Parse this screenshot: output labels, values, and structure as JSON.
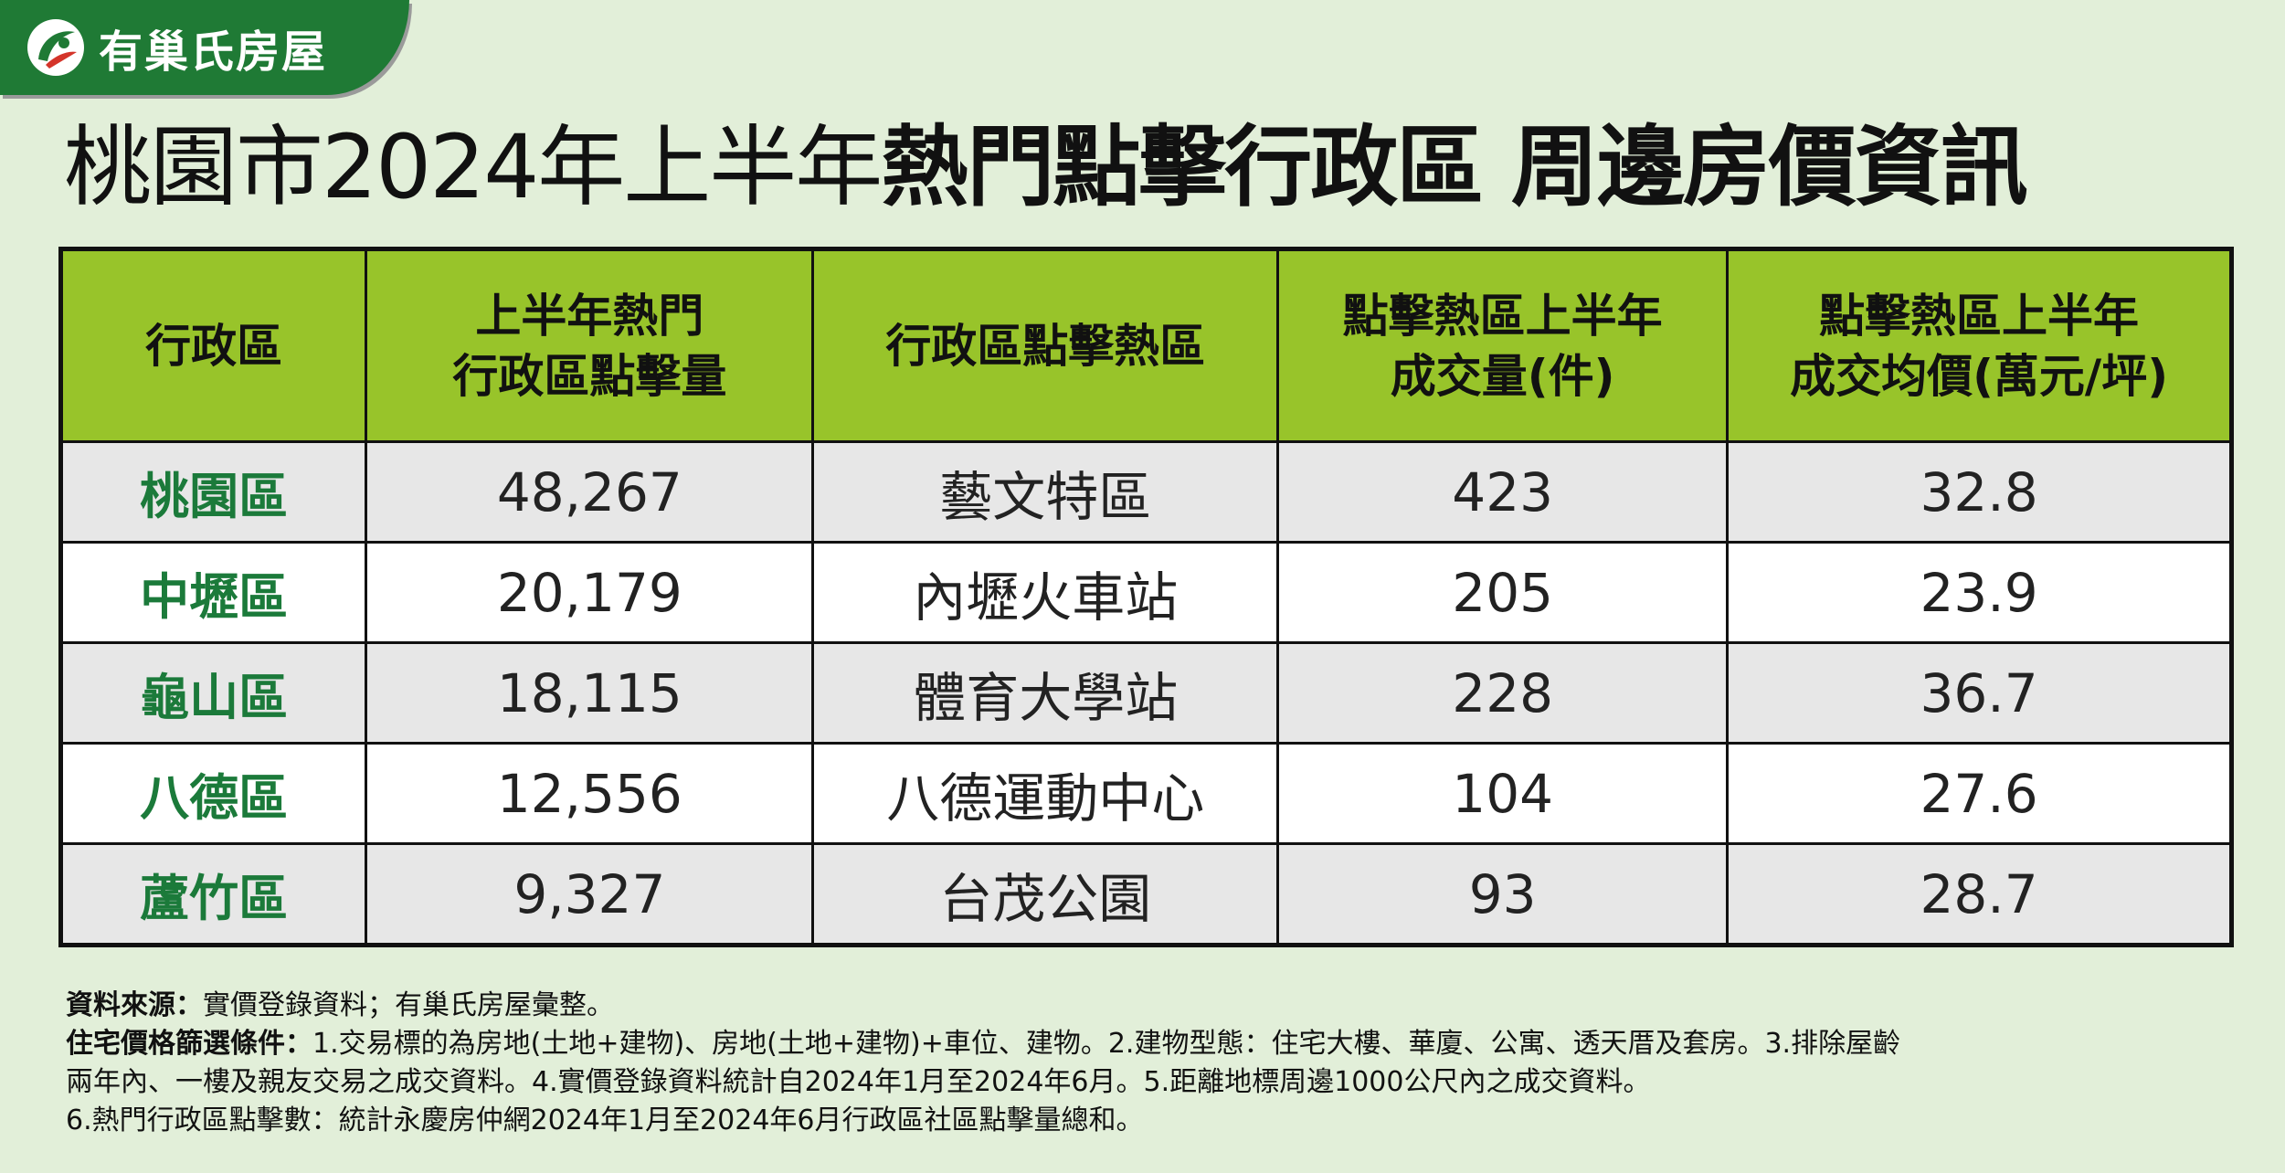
{
  "brand": {
    "name": "有巢氏房屋",
    "logo_icon": "leaf-swoosh-icon"
  },
  "title": {
    "light": "桃園市2024年上半年",
    "bold": "熱門點擊行政區 周邊房價資訊"
  },
  "table": {
    "headers": [
      [
        "行政區"
      ],
      [
        "上半年熱門",
        "行政區點擊量"
      ],
      [
        "行政區點擊熱區"
      ],
      [
        "點擊熱區上半年",
        "成交量(件)"
      ],
      [
        "點擊熱區上半年",
        "成交均價(萬元/坪)"
      ]
    ],
    "rows": [
      [
        "桃園區",
        "48,267",
        "藝文特區",
        "423",
        "32.8"
      ],
      [
        "中壢區",
        "20,179",
        "內壢火車站",
        "205",
        "23.9"
      ],
      [
        "龜山區",
        "18,115",
        "體育大學站",
        "228",
        "36.7"
      ],
      [
        "八德區",
        "12,556",
        "八德運動中心",
        "104",
        "27.6"
      ],
      [
        "蘆竹區",
        "9,327",
        "台茂公園",
        "93",
        "28.7"
      ]
    ]
  },
  "notes": {
    "source_label": "資料來源：",
    "source_text": "實價登錄資料；有巢氏房屋彙整。",
    "criteria_label": "住宅價格篩選條件：",
    "criteria_line1": "1.交易標的為房地(土地+建物)、房地(土地+建物)+車位、建物。2.建物型態：住宅大樓、華廈、公寓、透天厝及套房。3.排除屋齡",
    "criteria_line2": "兩年內、一樓及親友交易之成交資料。4.實價登錄資料統計自2024年1月至2024年6月。5.距離地標周邊1000公尺內之成交資料。",
    "criteria_line3": "6.熱門行政區點擊數：統計永慶房仲網2024年1月至2024年6月行政區社區點擊量總和。"
  },
  "colors": {
    "background": "#e2efd9",
    "brand_green": "#1f7a35",
    "header_green": "#98c42a",
    "district_text": "#1b7a3a"
  }
}
